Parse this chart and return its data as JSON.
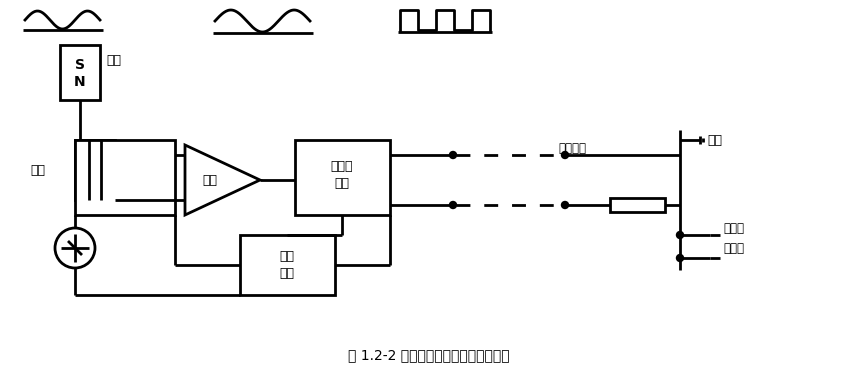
{
  "title": "图 1.2-2 涡轮流量计前置放大器原理图",
  "title_fontsize": 10,
  "bg_color": "#ffffff",
  "line_color": "#000000",
  "fig_width": 8.59,
  "fig_height": 3.74,
  "labels": {
    "sensor": "磁铁",
    "coil": "检芯",
    "amplifier": "放大",
    "schmitt": "施密特\n电路",
    "voltage": "电压\n调量",
    "receiver_label": "接收电阻",
    "power": "电源",
    "signal_label1": "接信号",
    "signal_label2": "接收器"
  }
}
